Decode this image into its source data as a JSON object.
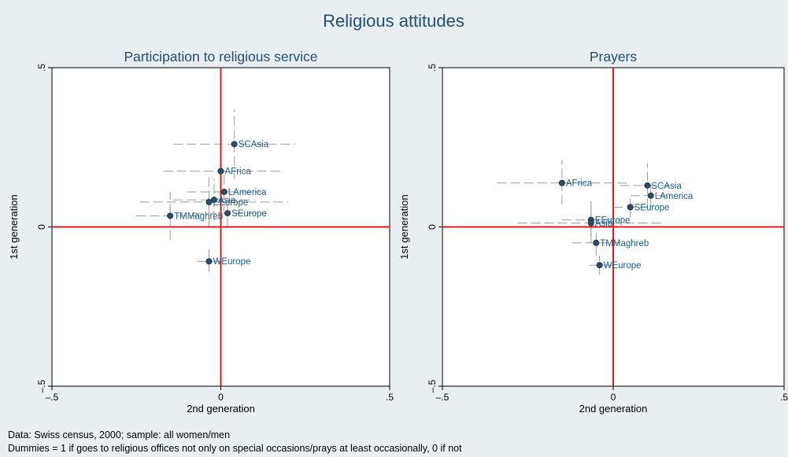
{
  "figure": {
    "title": "Religious attitudes",
    "notes": [
      "Data: Swiss census, 2000; sample: all women/men",
      "Dummies = 1 if goes to religious offices not only on special occasions/prays at least occasionally, 0 if not"
    ]
  },
  "colors": {
    "background": "#e9eef1",
    "plot_background": "#ffffff",
    "reference_lines": "#e41a1c",
    "points": "#2a4d69",
    "labels": "#1a5e8a",
    "ci_lines": "#9a9a9a",
    "title": "#1f4e79"
  },
  "chart_data": [
    {
      "type": "scatter",
      "title": "Participation to religious service",
      "xlabel": "2nd generation",
      "ylabel": "1st generation",
      "xlim": [
        -0.5,
        0.5
      ],
      "ylim": [
        -0.5,
        0.5
      ],
      "x_ticks": [
        -0.5,
        0,
        0.5
      ],
      "x_tick_labels": [
        "–.5",
        "0",
        ".5"
      ],
      "y_ticks": [
        -0.5,
        0,
        0.5
      ],
      "y_tick_labels": [
        "–.5",
        "0",
        ".5"
      ],
      "reference_lines": {
        "x": 0,
        "y": 0
      },
      "points": [
        {
          "label": "SCAsia",
          "x": 0.04,
          "y": 0.26,
          "x_ci": [
            -0.14,
            0.22
          ],
          "y_ci": [
            0.15,
            0.37
          ]
        },
        {
          "label": "AFrica",
          "x": 0.0,
          "y": 0.175,
          "x_ci": [
            -0.17,
            0.18
          ],
          "y_ci": [
            0.09,
            0.26
          ]
        },
        {
          "label": "LAmerica",
          "x": 0.01,
          "y": 0.11,
          "x_ci": [
            -0.1,
            0.12
          ],
          "y_ci": [
            0.05,
            0.17
          ]
        },
        {
          "label": "Asia",
          "x": -0.02,
          "y": 0.085,
          "x_ci": [
            -0.14,
            0.1
          ],
          "y_ci": [
            0.02,
            0.15
          ]
        },
        {
          "label": "EEurope",
          "x": -0.035,
          "y": 0.078,
          "x_ci": [
            -0.24,
            0.2
          ],
          "y_ci": [
            0.0,
            0.16
          ]
        },
        {
          "label": "SEurope",
          "x": 0.02,
          "y": 0.043,
          "x_ci": [
            -0.08,
            0.12
          ],
          "y_ci": [
            0.0,
            0.09
          ]
        },
        {
          "label": "TMMaghreb",
          "x": -0.15,
          "y": 0.035,
          "x_ci": [
            -0.25,
            -0.05
          ],
          "y_ci": [
            -0.04,
            0.11
          ]
        },
        {
          "label": "WEurope",
          "x": -0.035,
          "y": -0.108,
          "x_ci": [
            -0.07,
            0.0
          ],
          "y_ci": [
            -0.14,
            -0.07
          ]
        }
      ]
    },
    {
      "type": "scatter",
      "title": "Prayers",
      "xlabel": "2nd generation",
      "ylabel": "1st generation",
      "xlim": [
        -0.5,
        0.5
      ],
      "ylim": [
        -0.5,
        0.5
      ],
      "x_ticks": [
        -0.5,
        0,
        0.5
      ],
      "x_tick_labels": [
        "–.5",
        "0",
        ".5"
      ],
      "y_ticks": [
        -0.5,
        0,
        0.5
      ],
      "y_tick_labels": [
        "–.5",
        "0",
        ".5"
      ],
      "reference_lines": {
        "x": 0,
        "y": 0
      },
      "points": [
        {
          "label": "AFrica",
          "x": -0.15,
          "y": 0.138,
          "x_ci": [
            -0.34,
            0.04
          ],
          "y_ci": [
            0.07,
            0.21
          ]
        },
        {
          "label": "SCAsia",
          "x": 0.1,
          "y": 0.13,
          "x_ci": [
            0.02,
            0.18
          ],
          "y_ci": [
            0.06,
            0.2
          ]
        },
        {
          "label": "LAmerica",
          "x": 0.11,
          "y": 0.098,
          "x_ci": [
            0.05,
            0.17
          ],
          "y_ci": [
            0.06,
            0.14
          ]
        },
        {
          "label": "SEurope",
          "x": 0.05,
          "y": 0.062,
          "x_ci": [
            0.0,
            0.1
          ],
          "y_ci": [
            0.03,
            0.09
          ]
        },
        {
          "label": "EEurope",
          "x": -0.065,
          "y": 0.022,
          "x_ci": [
            -0.15,
            0.02
          ],
          "y_ci": [
            -0.03,
            0.08
          ]
        },
        {
          "label": "Asia",
          "x": -0.065,
          "y": 0.012,
          "x_ci": [
            -0.28,
            0.14
          ],
          "y_ci": [
            -0.05,
            0.08
          ]
        },
        {
          "label": "TMMaghreb",
          "x": -0.05,
          "y": -0.05,
          "x_ci": [
            -0.12,
            0.02
          ],
          "y_ci": [
            -0.09,
            -0.01
          ]
        },
        {
          "label": "WEurope",
          "x": -0.04,
          "y": -0.12,
          "x_ci": [
            -0.07,
            0.0
          ],
          "y_ci": [
            -0.15,
            -0.09
          ]
        }
      ]
    }
  ]
}
